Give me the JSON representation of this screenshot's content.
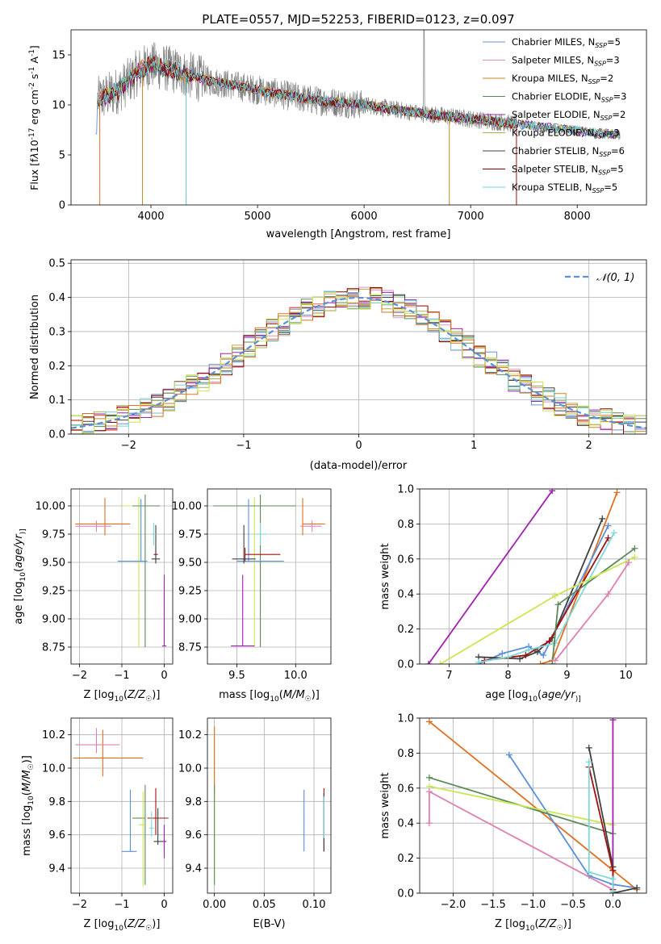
{
  "colors": [
    "#6f8fd8",
    "#e690c0",
    "#c48a1e",
    "#5a8a5a",
    "#a020b0",
    "#b0b050",
    "#404040",
    "#8b0000",
    "#70d0d8"
  ],
  "scatter_colors": {
    "chabrier_miles": "#5b8fd8",
    "salpeter_miles": "#e080b0",
    "kroupa_miles": "#e07020",
    "chabrier_elodie": "#5a8a5a",
    "salpeter_elodie": "#a020b0",
    "kroupa_elodie": "#c8e850",
    "chabrier_stelib": "#404040",
    "salpeter_stelib": "#a01010",
    "kroupa_stelib": "#80d8d8"
  },
  "chart_data": [
    {
      "id": "spectrum",
      "type": "line",
      "title": "PLATE=0557, MJD=52253, FIBERID=0123, z=0.097",
      "xlabel": "wavelength [Angstrom, rest frame]",
      "ylabel_parts": [
        "Flux [f",
        "λ",
        "10",
        "-17",
        " erg cm",
        "-2",
        " s",
        "-1",
        " A",
        "-1",
        "]"
      ],
      "xlim": [
        3250,
        8650
      ],
      "ylim": [
        0,
        17.5
      ],
      "xticks": [
        4000,
        5000,
        6000,
        7000,
        8000
      ],
      "yticks": [
        0,
        5,
        10,
        15
      ],
      "grid": false,
      "legend_position": "top-right",
      "legend": [
        {
          "label": "Chabrier MILES, N",
          "sub": "SSP",
          "tail": "=5"
        },
        {
          "label": "Salpeter MILES, N",
          "sub": "SSP",
          "tail": "=3"
        },
        {
          "label": "Kroupa MILES, N",
          "sub": "SSP",
          "tail": "=2"
        },
        {
          "label": "Chabrier ELODIE, N",
          "sub": "SSP",
          "tail": "=3"
        },
        {
          "label": "Salpeter ELODIE, N",
          "sub": "SSP",
          "tail": "=2"
        },
        {
          "label": "Kroupa ELODIE, N",
          "sub": "SSP",
          "tail": "=3"
        },
        {
          "label": "Chabrier STELIB, N",
          "sub": "SSP",
          "tail": "=6"
        },
        {
          "label": "Salpeter STELIB, N",
          "sub": "SSP",
          "tail": "=5"
        },
        {
          "label": "Kroupa STELIB, N",
          "sub": "SSP",
          "tail": "=5"
        }
      ],
      "continuum_x": [
        3500,
        3700,
        3900,
        4000,
        4200,
        4500,
        5000,
        5500,
        6000,
        6500,
        7000,
        7500,
        8000,
        8400
      ],
      "continuum_y": [
        10.5,
        11.5,
        13.5,
        14.0,
        13.5,
        12.5,
        11.5,
        10.5,
        10.0,
        9.2,
        8.6,
        8.0,
        7.4,
        7.0
      ]
    },
    {
      "id": "residuals",
      "type": "histogram",
      "xlabel": "(data-model)/error",
      "ylabel": "Normed distribution",
      "xlim": [
        -2.5,
        2.5
      ],
      "ylim": [
        0,
        0.51
      ],
      "xticks": [
        -2,
        -1,
        0,
        1,
        2
      ],
      "xticklabels": [
        "−2",
        "−1",
        "0",
        "1",
        "2"
      ],
      "yticks": [
        0,
        0.1,
        0.2,
        0.3,
        0.4,
        0.5
      ],
      "yticklabels": [
        "0.0",
        "0.1",
        "0.2",
        "0.3",
        "0.4",
        "0.5"
      ],
      "grid": true,
      "legend_position": "top-right",
      "legend": "𝒩(0, 1)",
      "bin_width": 0.1
    },
    {
      "id": "age_vs_Z",
      "type": "scatter",
      "xlabel": "Z [log10(Z/Z☉)]",
      "xlabel_parts": [
        "Z [log",
        "10",
        "(",
        "Z/Z",
        "☉",
        ")]"
      ],
      "ylabel_parts": [
        "age  [log",
        "10",
        "(",
        "age/yr",
        ")]"
      ],
      "xlim": [
        -2.2,
        0.2
      ],
      "ylim": [
        8.6,
        10.15
      ],
      "xticks": [
        -2,
        -1,
        0
      ],
      "xticklabels": [
        "−2",
        "−1",
        "0"
      ],
      "yticks": [
        8.75,
        9.0,
        9.25,
        9.5,
        9.75,
        10.0
      ],
      "yticklabels": [
        "8.75",
        "9.00",
        "9.25",
        "9.50",
        "9.75",
        "10.00"
      ],
      "grid": true,
      "points": [
        {
          "x": -0.6,
          "y": 10.0,
          "xerr": [
            0.4,
            0.4
          ],
          "yerr": [
            1.25,
            0.08
          ],
          "c": "kroupa_elodie"
        },
        {
          "x": -0.45,
          "y": 10.0,
          "xerr": [
            0.3,
            0.35
          ],
          "yerr": [
            1.25,
            0.1
          ],
          "c": "chabrier_elodie"
        },
        {
          "x": -1.4,
          "y": 9.84,
          "xerr": [
            0.7,
            0.6
          ],
          "yerr": [
            0.1,
            0.23
          ],
          "c": "kroupa_miles"
        },
        {
          "x": -1.6,
          "y": 9.82,
          "xerr": [
            0.5,
            0.35
          ],
          "yerr": [
            0.05,
            0.05
          ],
          "c": "salpeter_miles"
        },
        {
          "x": -0.55,
          "y": 9.51,
          "xerr": [
            0.55,
            0.15
          ],
          "yerr": [
            0.0,
            0.55
          ],
          "c": "chabrier_miles"
        },
        {
          "x": -0.2,
          "y": 9.57,
          "xerr": [
            0.05,
            0.05
          ],
          "yerr": [
            0.06,
            0.06
          ],
          "c": "salpeter_stelib"
        },
        {
          "x": -0.2,
          "y": 9.53,
          "xerr": [
            0.1,
            0.1
          ],
          "yerr": [
            0.04,
            0.3
          ],
          "c": "chabrier_stelib"
        },
        {
          "x": -0.25,
          "y": 9.75,
          "xerr": [
            0.05,
            0.05
          ],
          "yerr": [
            0.1,
            0.1
          ],
          "c": "kroupa_stelib"
        },
        {
          "x": 0.0,
          "y": 8.76,
          "xerr": [
            0.05,
            0.05
          ],
          "yerr": [
            0.0,
            0.63
          ],
          "c": "salpeter_elodie"
        }
      ]
    },
    {
      "id": "age_vs_mass",
      "type": "scatter",
      "xlabel_parts": [
        "mass [log",
        "10",
        "(",
        "M/M",
        "☉",
        ")]"
      ],
      "xlim": [
        9.25,
        10.3
      ],
      "ylim": [
        8.6,
        10.15
      ],
      "xticks": [
        9.5,
        10.0
      ],
      "xticklabels": [
        "9.5",
        "10.0"
      ],
      "yticks": [
        8.75,
        9.0,
        9.25,
        9.5,
        9.75,
        10.0
      ],
      "yticklabels": [
        "8.75",
        "9.00",
        "9.25",
        "9.50",
        "9.75",
        "10.00"
      ],
      "grid": true,
      "points": [
        {
          "x": 9.65,
          "y": 10.0,
          "xerr": [
            0.25,
            0.25
          ],
          "yerr": [
            1.25,
            0.08
          ],
          "c": "kroupa_elodie"
        },
        {
          "x": 9.7,
          "y": 10.0,
          "xerr": [
            0.4,
            0.3
          ],
          "yerr": [
            1.25,
            0.1
          ],
          "c": "chabrier_elodie"
        },
        {
          "x": 10.06,
          "y": 9.84,
          "xerr": [
            0.0,
            0.19
          ],
          "yerr": [
            0.1,
            0.23
          ],
          "c": "kroupa_miles"
        },
        {
          "x": 10.14,
          "y": 9.82,
          "xerr": [
            0.1,
            0.08
          ],
          "yerr": [
            0.05,
            0.05
          ],
          "c": "salpeter_miles"
        },
        {
          "x": 9.6,
          "y": 9.51,
          "xerr": [
            0.1,
            0.3
          ],
          "yerr": [
            0.0,
            0.55
          ],
          "c": "chabrier_miles"
        },
        {
          "x": 9.57,
          "y": 9.57,
          "xerr": [
            0.0,
            0.3
          ],
          "yerr": [
            0.06,
            0.06
          ],
          "c": "salpeter_stelib"
        },
        {
          "x": 9.56,
          "y": 9.53,
          "xerr": [
            0.1,
            0.1
          ],
          "yerr": [
            0.04,
            0.3
          ],
          "c": "chabrier_stelib"
        },
        {
          "x": 9.7,
          "y": 9.75,
          "xerr": [
            0.05,
            0.05
          ],
          "yerr": [
            0.1,
            0.1
          ],
          "c": "kroupa_stelib"
        },
        {
          "x": 9.55,
          "y": 8.76,
          "xerr": [
            0.1,
            0.1
          ],
          "yerr": [
            0.0,
            0.63
          ],
          "c": "salpeter_elodie"
        }
      ]
    },
    {
      "id": "weight_vs_age",
      "type": "line",
      "ylabel": "mass weight",
      "xlabel_parts": [
        "age  [log",
        "10",
        "(",
        "age/yr",
        ")]"
      ],
      "xlim": [
        6.5,
        10.35
      ],
      "ylim": [
        0,
        1
      ],
      "xticks": [
        7,
        8,
        9,
        10
      ],
      "xticklabels": [
        "7",
        "8",
        "9",
        "10"
      ],
      "yticks": [
        0,
        0.2,
        0.4,
        0.6,
        0.8,
        1.0
      ],
      "yticklabels": [
        "0.0",
        "0.2",
        "0.4",
        "0.6",
        "0.8",
        "1.0"
      ],
      "grid": true,
      "series": [
        {
          "c": "salpeter_elodie",
          "x": [
            6.65,
            8.75
          ],
          "y": [
            0.0,
            0.99
          ]
        },
        {
          "c": "kroupa_miles",
          "x": [
            8.55,
            8.75,
            9.85
          ],
          "y": [
            0.0,
            0.02,
            0.98
          ]
        },
        {
          "c": "chabrier_miles",
          "x": [
            7.5,
            7.9,
            8.35,
            8.6,
            9.7
          ],
          "y": [
            0.0,
            0.06,
            0.1,
            0.05,
            0.79
          ]
        },
        {
          "c": "chabrier_stelib",
          "x": [
            7.5,
            8.2,
            8.5,
            8.75,
            9.6
          ],
          "y": [
            0.04,
            0.03,
            0.07,
            0.15,
            0.83
          ]
        },
        {
          "c": "salpeter_stelib",
          "x": [
            7.6,
            8.3,
            8.7,
            9.7
          ],
          "y": [
            0.02,
            0.05,
            0.13,
            0.72
          ]
        },
        {
          "c": "kroupa_stelib",
          "x": [
            7.5,
            8.0,
            8.35,
            8.8,
            9.8
          ],
          "y": [
            0.01,
            0.04,
            0.08,
            0.12,
            0.75
          ]
        },
        {
          "c": "chabrier_elodie",
          "x": [
            8.75,
            8.85,
            10.15
          ],
          "y": [
            0.0,
            0.34,
            0.66
          ]
        },
        {
          "c": "kroupa_elodie",
          "x": [
            6.85,
            8.8,
            10.15
          ],
          "y": [
            0.0,
            0.39,
            0.61
          ]
        },
        {
          "c": "salpeter_miles",
          "x": [
            8.8,
            9.7,
            10.05
          ],
          "y": [
            0.02,
            0.4,
            0.58
          ]
        }
      ]
    },
    {
      "id": "mass_vs_Z",
      "type": "scatter",
      "xlabel_parts": [
        "Z [log",
        "10",
        "(",
        "Z/Z",
        "☉",
        ")]"
      ],
      "ylabel_parts": [
        "mass [log",
        "10",
        "(",
        "M/M",
        "☉",
        ")]"
      ],
      "xlim": [
        -2.2,
        0.2
      ],
      "ylim": [
        9.25,
        10.3
      ],
      "xticks": [
        -2,
        -1,
        0
      ],
      "xticklabels": [
        "−2",
        "−1",
        "0"
      ],
      "yticks": [
        9.4,
        9.6,
        9.8,
        10.0,
        10.2
      ],
      "yticklabels": [
        "9.4",
        "9.6",
        "9.8",
        "10.0",
        "10.2"
      ],
      "grid": true,
      "points": [
        {
          "x": -1.45,
          "y": 10.06,
          "xerr": [
            0.7,
            0.95
          ],
          "yerr": [
            0.11,
            0.17
          ],
          "c": "kroupa_miles"
        },
        {
          "x": -1.6,
          "y": 10.14,
          "xerr": [
            0.5,
            0.55
          ],
          "yerr": [
            0.05,
            0.1
          ],
          "c": "salpeter_miles"
        },
        {
          "x": -0.8,
          "y": 9.5,
          "xerr": [
            0.2,
            0.15
          ],
          "yerr": [
            0.0,
            0.37
          ],
          "c": "chabrier_miles"
        },
        {
          "x": -0.45,
          "y": 9.7,
          "xerr": [
            0.3,
            0.0
          ],
          "yerr": [
            0.4,
            0.2
          ],
          "c": "chabrier_elodie"
        },
        {
          "x": -0.5,
          "y": 9.66,
          "xerr": [
            0.1,
            0.05
          ],
          "yerr": [
            0.37,
            0.2
          ],
          "c": "kroupa_elodie"
        },
        {
          "x": -0.2,
          "y": 9.7,
          "xerr": [
            0.2,
            0.3
          ],
          "yerr": [
            0.1,
            0.18
          ],
          "c": "salpeter_stelib"
        },
        {
          "x": -0.15,
          "y": 9.56,
          "xerr": [
            0.1,
            0.2
          ],
          "yerr": [
            0.02,
            0.2
          ],
          "c": "chabrier_stelib"
        },
        {
          "x": -0.3,
          "y": 9.64,
          "xerr": [
            0.05,
            0.05
          ],
          "yerr": [
            0.05,
            0.1
          ],
          "c": "kroupa_stelib"
        },
        {
          "x": 0.0,
          "y": 9.56,
          "xerr": [
            0.05,
            0.05
          ],
          "yerr": [
            0.1,
            0.1
          ],
          "c": "salpeter_elodie"
        }
      ]
    },
    {
      "id": "mass_vs_ebv",
      "type": "scatter",
      "xlabel": "E(B-V)",
      "xlim": [
        -0.007,
        0.117
      ],
      "ylim": [
        9.25,
        10.3
      ],
      "xticks": [
        0.0,
        0.05,
        0.1
      ],
      "xticklabels": [
        "0.00",
        "0.05",
        "0.10"
      ],
      "yticks": [
        9.4,
        9.6,
        9.8,
        10.0,
        10.2
      ],
      "yticklabels": [
        "9.4",
        "9.6",
        "9.8",
        "10.0",
        "10.2"
      ],
      "grid": true,
      "points": [
        {
          "x": 0.0,
          "y": 9.8,
          "xerr": [
            0,
            0
          ],
          "yerr": [
            0.5,
            0.45
          ],
          "c": "kroupa_elodie"
        },
        {
          "x": 0.0,
          "y": 9.95,
          "xerr": [
            0,
            0
          ],
          "yerr": [
            0.1,
            0.3
          ],
          "c": "kroupa_miles"
        },
        {
          "x": 0.0,
          "y": 9.6,
          "xerr": [
            0,
            0
          ],
          "yerr": [
            0.3,
            0.3
          ],
          "c": "chabrier_elodie"
        },
        {
          "x": 0.09,
          "y": 9.68,
          "xerr": [
            0,
            0
          ],
          "yerr": [
            0.18,
            0.19
          ],
          "c": "chabrier_miles"
        },
        {
          "x": 0.11,
          "y": 9.7,
          "xerr": [
            0,
            0
          ],
          "yerr": [
            0.2,
            0.18
          ],
          "c": "salpeter_stelib"
        },
        {
          "x": 0.11,
          "y": 9.65,
          "xerr": [
            0,
            0
          ],
          "yerr": [
            0.15,
            0.2
          ],
          "c": "chabrier_stelib"
        },
        {
          "x": 0.11,
          "y": 9.68,
          "xerr": [
            0,
            0
          ],
          "yerr": [
            0.1,
            0.15
          ],
          "c": "kroupa_stelib"
        }
      ]
    },
    {
      "id": "weight_vs_Z",
      "type": "line",
      "ylabel": "mass weight",
      "xlabel_parts": [
        "Z [log",
        "10",
        "(",
        "Z/Z",
        "☉",
        ")]"
      ],
      "xlim": [
        -2.42,
        0.42
      ],
      "ylim": [
        0,
        1
      ],
      "xticks": [
        -2.0,
        -1.5,
        -1.0,
        -0.5,
        0.0
      ],
      "xticklabels": [
        "−2.0",
        "−1.5",
        "−1.0",
        "−0.5",
        "0.0"
      ],
      "yticks": [
        0,
        0.2,
        0.4,
        0.6,
        0.8,
        1.0
      ],
      "yticklabels": [
        "0.0",
        "0.2",
        "0.4",
        "0.6",
        "0.8",
        "1.0"
      ],
      "grid": true,
      "series": [
        {
          "c": "kroupa_miles",
          "x": [
            -2.3,
            0.3
          ],
          "y": [
            0.98,
            0.02
          ]
        },
        {
          "c": "chabrier_miles",
          "x": [
            -1.3,
            -0.3,
            0.0,
            0.3
          ],
          "y": [
            0.79,
            0.1,
            0.05,
            0.03
          ]
        },
        {
          "c": "chabrier_elodie",
          "x": [
            -2.3,
            0.0
          ],
          "y": [
            0.66,
            0.34
          ]
        },
        {
          "c": "kroupa_elodie",
          "x": [
            -2.3,
            0.0,
            0.0
          ],
          "y": [
            0.61,
            0.39,
            0.0
          ]
        },
        {
          "c": "salpeter_miles",
          "x": [
            -2.3,
            -2.3,
            0.0
          ],
          "y": [
            0.4,
            0.58,
            0.02
          ]
        },
        {
          "c": "salpeter_elodie",
          "x": [
            0.0,
            0.0
          ],
          "y": [
            0.0,
            0.99
          ]
        },
        {
          "c": "chabrier_stelib",
          "x": [
            -0.3,
            0.0,
            0.0,
            0.3
          ],
          "y": [
            0.83,
            0.15,
            0.0,
            0.03
          ]
        },
        {
          "c": "salpeter_stelib",
          "x": [
            -0.3,
            0.0,
            0.0
          ],
          "y": [
            0.72,
            0.13,
            0.02
          ]
        },
        {
          "c": "kroupa_stelib",
          "x": [
            -0.3,
            -0.3,
            0.0,
            0.0
          ],
          "y": [
            0.75,
            0.12,
            0.08,
            0.01
          ]
        }
      ]
    }
  ]
}
